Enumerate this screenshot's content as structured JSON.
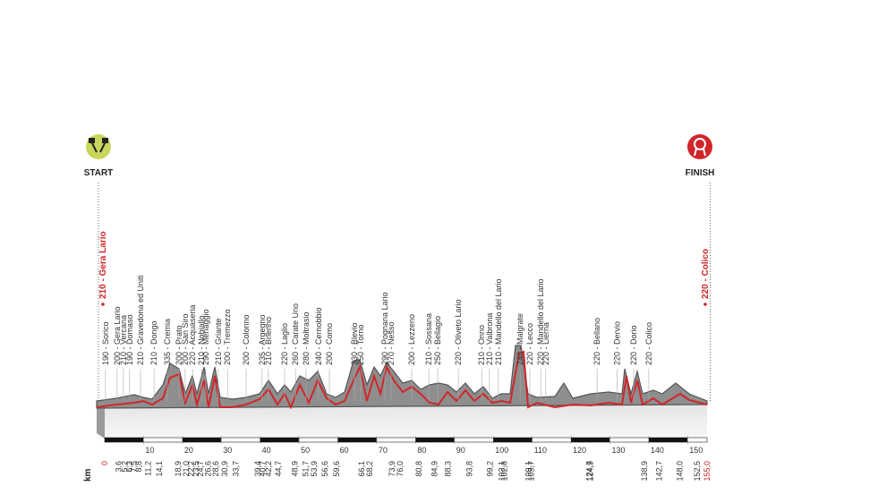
{
  "chart_data": {
    "type": "elevation-profile",
    "start": "START",
    "finish": "FINISH",
    "start_place": {
      "name": "210 - Gera Lario",
      "km": 0
    },
    "finish_place": {
      "name": "220 - Colico",
      "km": 155
    },
    "x_unit": "km",
    "xlim": [
      0,
      155
    ],
    "xticks": [
      10,
      20,
      30,
      40,
      50,
      60,
      70,
      80,
      90,
      100,
      110,
      120,
      130,
      140,
      150
    ],
    "km_markers": [
      {
        "value": 0,
        "label": "0"
      },
      {
        "value": 3.6,
        "label": "3,6"
      },
      {
        "value": 5.2,
        "label": "5,2"
      },
      {
        "value": 6.3,
        "label": "6,3"
      },
      {
        "value": 7.5,
        "label": "7,5"
      },
      {
        "value": 8.8,
        "label": "8,8"
      },
      {
        "value": 11.2,
        "label": "11,2"
      },
      {
        "value": 14.1,
        "label": "14,1"
      },
      {
        "value": 18.9,
        "label": "18,9"
      },
      {
        "value": 21.0,
        "label": "21,0"
      },
      {
        "value": 22.2,
        "label": "22,2"
      },
      {
        "value": 23.5,
        "label": "23,5"
      },
      {
        "value": 24.7,
        "label": "24,7"
      },
      {
        "value": 26.6,
        "label": "26,6"
      },
      {
        "value": 28.6,
        "label": "28,6"
      },
      {
        "value": 30.9,
        "label": "30,9"
      },
      {
        "value": 33.7,
        "label": "33,7"
      },
      {
        "value": 39.4,
        "label": "39,4"
      },
      {
        "value": 40.7,
        "label": "40,7"
      },
      {
        "value": 42.2,
        "label": "42,2"
      },
      {
        "value": 44.7,
        "label": "44,7"
      },
      {
        "value": 48.9,
        "label": "48,9"
      },
      {
        "value": 51.7,
        "label": "51,7"
      },
      {
        "value": 53.9,
        "label": "53,9"
      },
      {
        "value": 56.6,
        "label": "56,6"
      },
      {
        "value": 59.6,
        "label": "59,6"
      },
      {
        "value": 66.1,
        "label": "66,1"
      },
      {
        "value": 68.2,
        "label": "68,2"
      },
      {
        "value": 73.9,
        "label": "73,9"
      },
      {
        "value": 76.0,
        "label": "76,0"
      },
      {
        "value": 80.8,
        "label": "80,8"
      },
      {
        "value": 84.9,
        "label": "84,9"
      },
      {
        "value": 88.3,
        "label": "88,3"
      },
      {
        "value": 93.8,
        "label": "93,8"
      },
      {
        "value": 99.2,
        "label": "99,2"
      },
      {
        "value": 102.1,
        "label": "102,1"
      },
      {
        "value": 102.8,
        "label": "102,8"
      },
      {
        "value": 109.1,
        "label": "109,1"
      },
      {
        "value": 109.7,
        "label": "109,7"
      },
      {
        "value": 124.7,
        "label": "124,7"
      },
      {
        "value": 124.9,
        "label": "124,9"
      },
      {
        "value": 138.9,
        "label": "138,9"
      },
      {
        "value": 142.7,
        "label": "142,7"
      },
      {
        "value": 148.0,
        "label": "148,0"
      },
      {
        "value": 152.5,
        "label": "152,5"
      },
      {
        "value": 155.0,
        "label": "155,0"
      }
    ],
    "places": [
      {
        "name": "190 - Sorico",
        "km": 0.2
      },
      {
        "name": "200 - Gera Lario",
        "km": 3.2
      },
      {
        "name": "210 - Vercana",
        "km": 4.8
      },
      {
        "name": "190 - Domaso",
        "km": 6.4
      },
      {
        "name": "210 - Gravedona ed Uniti",
        "km": 9.2
      },
      {
        "name": "210 - Dongo",
        "km": 12.7
      },
      {
        "name": "335 - Cremia",
        "km": 16.1
      },
      {
        "name": "200 - Prato",
        "km": 19.1
      },
      {
        "name": "200 - San Siro",
        "km": 20.7
      },
      {
        "name": "220 - Acquaseria",
        "km": 22.6
      },
      {
        "name": "210 - Nobiallo",
        "km": 24.9
      },
      {
        "name": "290 - Menaggio",
        "km": 26.0
      },
      {
        "name": "210 - Griante",
        "km": 29.2
      },
      {
        "name": "200 - Tremezzo",
        "km": 31.6
      },
      {
        "name": "200 - Colonno",
        "km": 36.4
      },
      {
        "name": "235 - Argegno",
        "km": 40.5
      },
      {
        "name": "210 - Brienno",
        "km": 42.1
      },
      {
        "name": "220 - Laglio",
        "km": 46.3
      },
      {
        "name": "260 - Carate Urio",
        "km": 49.1
      },
      {
        "name": "280 - Moltrasio",
        "km": 51.8
      },
      {
        "name": "240 - Cernobbio",
        "km": 55.0
      },
      {
        "name": "200 - Como",
        "km": 57.8
      },
      {
        "name": "330 - Blevio",
        "km": 64.3
      },
      {
        "name": "250 - Torno",
        "km": 65.9
      },
      {
        "name": "290 - Pognana Lario",
        "km": 72.1
      },
      {
        "name": "270 - Nesso",
        "km": 73.7
      },
      {
        "name": "200 - Lezzeno",
        "km": 79.0
      },
      {
        "name": "210 - Sossana",
        "km": 83.4
      },
      {
        "name": "250 - Bellagio",
        "km": 85.7
      },
      {
        "name": "220 - Oliveto Lario",
        "km": 91.0
      },
      {
        "name": "210 - Onno",
        "km": 97.0
      },
      {
        "name": "210 - Valbrona",
        "km": 99.0
      },
      {
        "name": "210 - Mandello del Lario",
        "km": 101.3
      },
      {
        "name": "240 - Malgrate",
        "km": 106.9
      },
      {
        "name": "220 - Lecco",
        "km": 109.4
      },
      {
        "name": "220 - Mandello del Lario",
        "km": 112.2
      },
      {
        "name": "220 - Lierna",
        "km": 113.5
      },
      {
        "name": "220 - Bellano",
        "km": 126.7
      },
      {
        "name": "220 - Dervio",
        "km": 131.9
      },
      {
        "name": "220 - Dorio",
        "km": 136.1
      },
      {
        "name": "220 - Colico",
        "km": 140.0
      }
    ]
  }
}
